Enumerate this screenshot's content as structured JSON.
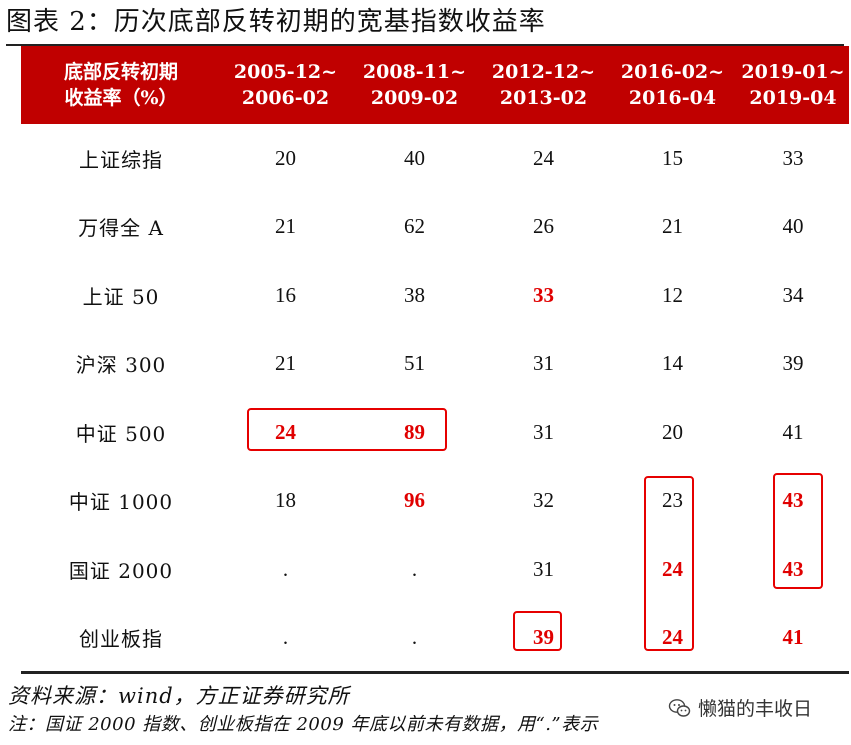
{
  "title": "图表 2：历次底部反转初期的宽基指数收益率",
  "table": {
    "header": {
      "row_label": [
        "底部反转初期",
        "收益率（%）"
      ],
      "periods": [
        [
          "2005-12~",
          "2006-02"
        ],
        [
          "2008-11~",
          "2009-02"
        ],
        [
          "2012-12~",
          "2013-02"
        ],
        [
          "2016-02~",
          "2016-04"
        ],
        [
          "2019-01~",
          "2019-04"
        ]
      ]
    },
    "rows": [
      {
        "name": "上证综指",
        "values": [
          "20",
          "40",
          "24",
          "15",
          "33"
        ]
      },
      {
        "name": "万得全 A",
        "values": [
          "21",
          "62",
          "26",
          "21",
          "40"
        ]
      },
      {
        "name": "上证 50",
        "values": [
          "16",
          "38",
          "33",
          "12",
          "34"
        ]
      },
      {
        "name": "沪深 300",
        "values": [
          "21",
          "51",
          "31",
          "14",
          "39"
        ]
      },
      {
        "name": "中证 500",
        "values": [
          "24",
          "89",
          "31",
          "20",
          "41"
        ]
      },
      {
        "name": "中证 1000",
        "values": [
          "18",
          "96",
          "32",
          "23",
          "43"
        ]
      },
      {
        "name": "国证 2000",
        "values": [
          ".",
          ".",
          "31",
          "24",
          "43"
        ]
      },
      {
        "name": "创业板指",
        "values": [
          ".",
          ".",
          "39",
          "24",
          "41"
        ]
      }
    ],
    "highlighted_color": "#e00000",
    "header_color": "#c00000"
  },
  "source": "资料来源：wind，方正证券研究所",
  "note": "注：国证 2000 指数、创业板指在 2009 年底以前未有数据，用“.”表示",
  "watermark": "懒猫的丰收日"
}
